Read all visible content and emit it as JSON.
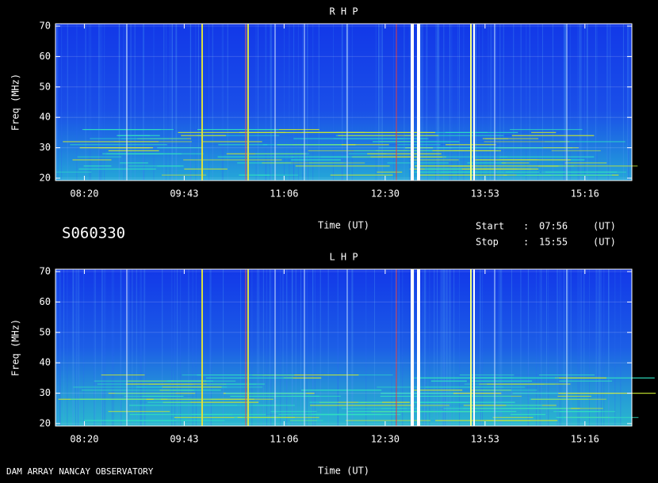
{
  "panels": [
    {
      "title": "R H P",
      "y_label": "Freq (MHz)",
      "ylim": [
        20,
        70
      ],
      "yticks": [
        20,
        30,
        40,
        50,
        60,
        70
      ],
      "xticks": [
        "08:20",
        "09:43",
        "11:06",
        "12:30",
        "13:53",
        "15:16"
      ],
      "x_label": "Time (UT)"
    },
    {
      "title": "L H P",
      "y_label": "Freq (MHz)",
      "ylim": [
        20,
        70
      ],
      "yticks": [
        20,
        30,
        40,
        50,
        60,
        70
      ],
      "xticks": [
        "08:20",
        "09:43",
        "11:06",
        "12:30",
        "13:53",
        "15:16"
      ],
      "x_label": "Time (UT)"
    }
  ],
  "session": "S060330",
  "start": {
    "label": "Start",
    "sep": ":",
    "time": "07:56",
    "unit": "(UT)"
  },
  "stop": {
    "label": "Stop",
    "sep": ":",
    "time": "15:55",
    "unit": "(UT)"
  },
  "footer": "DAM ARRAY  NANCAY OBSERVATORY"
}
